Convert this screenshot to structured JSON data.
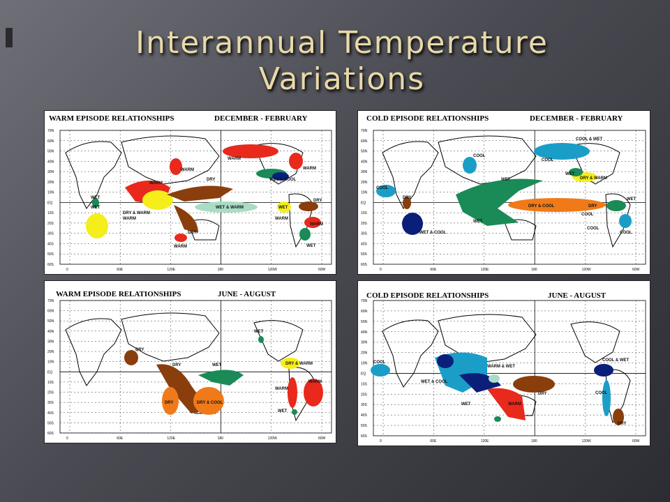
{
  "slide": {
    "title_line1": "Interannual Temperature",
    "title_line2": "Variations"
  },
  "colors": {
    "warm": "#e8291c",
    "dry": "#8a3e0c",
    "wet": "#1a8a57",
    "cool": "#1a9ec8",
    "yellow": "#f5ee1a",
    "dry_cool": "#f07a1a",
    "wet_warm": "#a9dcc4",
    "navy": "#0a1f7a"
  },
  "maps": [
    {
      "header_left": "WARM EPISODE RELATIONSHIPS",
      "header_right": "DECEMBER - FEBRUARY",
      "lat_ticks": [
        "70N",
        "60N",
        "50N",
        "40N",
        "30N",
        "20N",
        "10N",
        "EQ",
        "10S",
        "20S",
        "30S",
        "40S",
        "50S",
        "60S"
      ],
      "lon_ticks": [
        "0",
        "60E",
        "120E",
        "180",
        "120W",
        "60W"
      ],
      "labels": [
        "WARM",
        "DRY",
        "WARM",
        "WET",
        "DRY & WARM",
        "WET & WARM",
        "WET",
        "DRY",
        "WARM",
        "WARM",
        "WARM",
        "WET & COOL",
        "WARM",
        "DRY",
        "WET",
        "WARM",
        "WET",
        "WARM"
      ]
    },
    {
      "header_left": "COLD EPISODE RELATIONSHIPS",
      "header_right": "DECEMBER - FEBRUARY",
      "lat_ticks": [
        "70N",
        "60N",
        "50N",
        "40N",
        "30N",
        "20N",
        "10N",
        "EQ",
        "10S",
        "20S",
        "30S",
        "40S",
        "50S",
        "60S"
      ],
      "lon_ticks": [
        "0",
        "60E",
        "120E",
        "180",
        "120W",
        "60W"
      ],
      "labels": [
        "COOL",
        "COOL & WET",
        "COOL",
        "COOL",
        "WET",
        "DRY & WARM",
        "COOL",
        "DRY",
        "WET",
        "DRY & COOL",
        "DRY",
        "WET",
        "WET",
        "COOL",
        "COOL",
        "WET & COOL"
      ]
    },
    {
      "header_left": "WARM EPISODE RELATIONSHIPS",
      "header_right": "JUNE - AUGUST",
      "lat_ticks": [
        "70N",
        "60N",
        "50N",
        "40N",
        "30N",
        "20N",
        "10N",
        "EQ",
        "10S",
        "20S",
        "30S",
        "40S",
        "50S",
        "60S"
      ],
      "lon_ticks": [
        "0",
        "60E",
        "120E",
        "180",
        "120W",
        "60W"
      ],
      "labels": [
        "WET",
        "DRY",
        "DRY",
        "WET",
        "DRY & WARM",
        "WARM",
        "WARM",
        "DRY",
        "DRY & COOL",
        "WET"
      ]
    },
    {
      "header_left": "COLD EPISODE RELATIONSHIPS",
      "header_right": "JUNE - AUGUST",
      "lat_ticks": [
        "70N",
        "60N",
        "50N",
        "40N",
        "30N",
        "20N",
        "10N",
        "EQ",
        "10S",
        "20S",
        "30S",
        "40S",
        "50S",
        "60S"
      ],
      "lon_ticks": [
        "0",
        "60E",
        "120E",
        "180",
        "120W",
        "60W"
      ],
      "labels": [
        "COOL",
        "WARM & WET",
        "WET & COOL",
        "COOL & WET",
        "DRY",
        "COOL",
        "WET",
        "WARM",
        "DRY"
      ]
    }
  ]
}
